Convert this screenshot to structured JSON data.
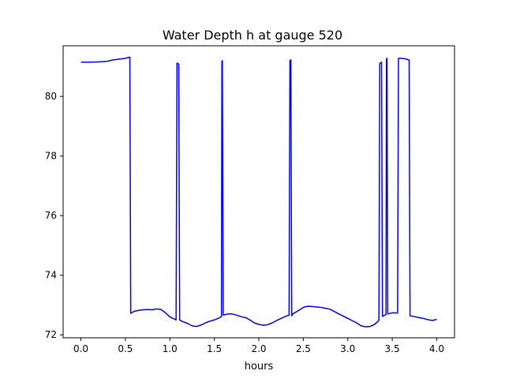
{
  "chart_data": {
    "type": "line",
    "title": "Water Depth h at gauge 520",
    "xlabel": "hours",
    "ylabel": "",
    "xlim": [
      -0.2,
      4.2
    ],
    "ylim": [
      71.9,
      81.7
    ],
    "xticks": [
      0.0,
      0.5,
      1.0,
      1.5,
      2.0,
      2.5,
      3.0,
      3.5,
      4.0
    ],
    "xtick_labels": [
      "0.0",
      "0.5",
      "1.0",
      "1.5",
      "2.0",
      "2.5",
      "3.0",
      "3.5",
      "4.0"
    ],
    "yticks": [
      72,
      74,
      76,
      78,
      80
    ],
    "ytick_labels": [
      "72",
      "74",
      "76",
      "78",
      "80"
    ],
    "grid": false,
    "legend": "none",
    "series": [
      {
        "color": "#0000ff",
        "x": [
          0.0,
          0.1,
          0.2,
          0.3,
          0.35,
          0.4,
          0.45,
          0.5,
          0.55,
          0.56,
          0.6,
          0.65,
          0.7,
          0.75,
          0.8,
          0.85,
          0.9,
          0.95,
          1.0,
          1.05,
          1.07,
          1.08,
          1.1,
          1.11,
          1.13,
          1.2,
          1.25,
          1.3,
          1.35,
          1.4,
          1.45,
          1.5,
          1.55,
          1.58,
          1.585,
          1.59,
          1.6,
          1.605,
          1.61,
          1.65,
          1.7,
          1.75,
          1.8,
          1.85,
          1.9,
          1.95,
          2.0,
          2.05,
          2.1,
          2.15,
          2.2,
          2.25,
          2.3,
          2.34,
          2.35,
          2.36,
          2.37,
          2.375,
          2.38,
          2.45,
          2.5,
          2.55,
          2.6,
          2.7,
          2.8,
          2.85,
          2.9,
          3.0,
          3.1,
          3.15,
          3.2,
          3.25,
          3.3,
          3.34,
          3.35,
          3.36,
          3.37,
          3.38,
          3.39,
          3.43,
          3.435,
          3.44,
          3.45,
          3.5,
          3.56,
          3.57,
          3.6,
          3.65,
          3.69,
          3.7,
          3.8,
          3.85,
          3.9,
          3.95,
          4.0
        ],
        "y": [
          81.15,
          81.15,
          81.16,
          81.18,
          81.22,
          81.24,
          81.26,
          81.28,
          81.32,
          72.72,
          72.79,
          72.82,
          72.84,
          72.85,
          72.84,
          72.87,
          72.85,
          72.74,
          72.6,
          72.53,
          72.5,
          81.12,
          81.08,
          72.5,
          72.46,
          72.38,
          72.3,
          72.28,
          72.33,
          72.4,
          72.46,
          72.5,
          72.56,
          72.62,
          81.18,
          81.2,
          72.66,
          72.68,
          72.67,
          72.7,
          72.7,
          72.66,
          72.61,
          72.58,
          72.5,
          72.4,
          72.35,
          72.32,
          72.34,
          72.4,
          72.48,
          72.55,
          72.62,
          72.66,
          81.2,
          81.23,
          72.64,
          72.66,
          72.7,
          72.82,
          72.92,
          72.96,
          72.95,
          72.92,
          72.86,
          72.78,
          72.7,
          72.55,
          72.4,
          72.3,
          72.27,
          72.28,
          72.35,
          72.45,
          72.5,
          81.1,
          81.13,
          81.15,
          72.62,
          72.68,
          81.25,
          81.28,
          72.7,
          72.74,
          72.73,
          81.28,
          81.28,
          81.26,
          81.22,
          72.64,
          72.58,
          72.55,
          72.51,
          72.48,
          72.52
        ]
      }
    ]
  }
}
